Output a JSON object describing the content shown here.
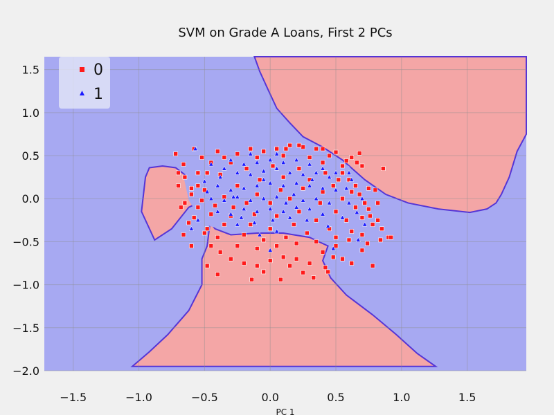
{
  "chart_data": {
    "type": "scatter",
    "title": "SVM on Grade A Loans, First 2 PCs",
    "xlabel": "PC 1",
    "ylabel": "",
    "xlim": [
      -1.72,
      1.95
    ],
    "ylim": [
      -2.0,
      1.65
    ],
    "xticks": [
      -1.5,
      -1.0,
      -0.5,
      0.0,
      0.5,
      1.0,
      1.5
    ],
    "xtick_labels": [
      "−1.5",
      "−1.0",
      "−0.5",
      "0.0",
      "0.5",
      "1.0",
      "1.5"
    ],
    "yticks": [
      1.5,
      1.0,
      0.5,
      0.0,
      -0.5,
      -1.0,
      -1.5,
      -2.0
    ],
    "ytick_labels": [
      "1.5",
      "1.0",
      "0.5",
      "0.0",
      "−0.5",
      "−1.0",
      "−1.5",
      "−2.0"
    ],
    "grid": true,
    "legend_position": "top-left",
    "colors": {
      "class0_region": "#f4a6a6",
      "class1_region": "#a7a9f2",
      "boundary": "#5535d6",
      "class0_marker": "#ff1a1a",
      "class1_marker": "#1a1aff",
      "grid": "#8e8e8e"
    },
    "decision_regions": [
      {
        "class": "0",
        "polygon": [
          [
            -0.92,
            0.36
          ],
          [
            -0.82,
            0.38
          ],
          [
            -0.72,
            0.36
          ],
          [
            -0.6,
            0.22
          ],
          [
            -0.52,
            0.05
          ],
          [
            -0.46,
            -0.3
          ],
          [
            -0.48,
            -0.55
          ],
          [
            -0.52,
            -0.7
          ],
          [
            -0.52,
            -1.0
          ],
          [
            -0.62,
            -1.3
          ],
          [
            -0.78,
            -1.58
          ],
          [
            -0.92,
            -1.78
          ],
          [
            -1.05,
            -1.95
          ],
          [
            1.26,
            -1.95
          ],
          [
            1.12,
            -1.8
          ],
          [
            0.96,
            -1.58
          ],
          [
            0.78,
            -1.35
          ],
          [
            0.58,
            -1.12
          ],
          [
            0.46,
            -0.92
          ],
          [
            0.4,
            -0.72
          ],
          [
            0.44,
            -0.55
          ],
          [
            0.3,
            -0.45
          ],
          [
            0.1,
            -0.4
          ],
          [
            -0.1,
            -0.4
          ],
          [
            -0.3,
            -0.42
          ],
          [
            -0.42,
            -0.35
          ],
          [
            -0.5,
            -0.2
          ],
          [
            -0.55,
            -0.05
          ],
          [
            -0.62,
            -0.1
          ],
          [
            -0.75,
            -0.35
          ],
          [
            -0.88,
            -0.48
          ],
          [
            -0.98,
            -0.15
          ],
          [
            -0.95,
            0.25
          ]
        ]
      },
      {
        "class": "0",
        "polygon": [
          [
            -0.12,
            1.65
          ],
          [
            1.95,
            1.65
          ],
          [
            1.95,
            0.75
          ],
          [
            1.88,
            0.55
          ],
          [
            1.82,
            0.25
          ],
          [
            1.76,
            0.05
          ],
          [
            1.72,
            -0.05
          ],
          [
            1.65,
            -0.12
          ],
          [
            1.52,
            -0.16
          ],
          [
            1.28,
            -0.12
          ],
          [
            1.05,
            -0.05
          ],
          [
            0.88,
            0.05
          ],
          [
            0.72,
            0.22
          ],
          [
            0.55,
            0.45
          ],
          [
            0.4,
            0.6
          ],
          [
            0.25,
            0.72
          ],
          [
            0.15,
            0.88
          ],
          [
            0.05,
            1.05
          ],
          [
            -0.02,
            1.28
          ],
          [
            -0.08,
            1.48
          ]
        ]
      }
    ],
    "class1_island": [
      [
        -0.66,
        0.26
      ],
      [
        -0.48,
        0.52
      ],
      [
        -0.1,
        0.6
      ],
      [
        0.32,
        0.56
      ],
      [
        0.6,
        0.38
      ],
      [
        0.74,
        0.05
      ],
      [
        0.62,
        -0.36
      ],
      [
        0.32,
        -0.44
      ],
      [
        0.0,
        -0.36
      ],
      [
        -0.28,
        -0.4
      ],
      [
        -0.5,
        -0.3
      ],
      [
        -0.62,
        -0.02
      ]
    ],
    "legend": [
      {
        "label": "0",
        "marker": "square"
      },
      {
        "label": "1",
        "marker": "triangle"
      }
    ],
    "series": [
      {
        "name": "0",
        "marker": "square",
        "points": [
          [
            -0.72,
            0.52
          ],
          [
            -0.58,
            0.58
          ],
          [
            -0.7,
            0.15
          ],
          [
            -0.65,
            0.25
          ],
          [
            -0.6,
            0.05
          ],
          [
            -0.55,
            -0.1
          ],
          [
            -0.62,
            -0.28
          ],
          [
            -0.5,
            -0.4
          ],
          [
            -0.45,
            -0.55
          ],
          [
            -0.38,
            -0.62
          ],
          [
            -0.3,
            -0.7
          ],
          [
            -0.2,
            -0.75
          ],
          [
            -0.1,
            -0.78
          ],
          [
            0.0,
            -0.72
          ],
          [
            0.1,
            -0.68
          ],
          [
            0.2,
            -0.7
          ],
          [
            0.3,
            -0.75
          ],
          [
            0.4,
            -0.62
          ],
          [
            0.5,
            -0.55
          ],
          [
            0.6,
            -0.48
          ],
          [
            0.7,
            -0.42
          ],
          [
            0.78,
            -0.3
          ],
          [
            0.75,
            -0.12
          ],
          [
            0.68,
            0.05
          ],
          [
            0.6,
            0.22
          ],
          [
            0.55,
            0.38
          ],
          [
            0.45,
            0.5
          ],
          [
            0.35,
            0.58
          ],
          [
            0.25,
            0.6
          ],
          [
            0.15,
            0.62
          ],
          [
            0.05,
            0.58
          ],
          [
            -0.05,
            0.55
          ],
          [
            -0.15,
            0.58
          ],
          [
            -0.25,
            0.52
          ],
          [
            -0.35,
            0.48
          ],
          [
            -0.45,
            0.42
          ],
          [
            -0.55,
            0.3
          ],
          [
            -0.6,
            0.12
          ],
          [
            -0.65,
            -0.05
          ],
          [
            -0.58,
            -0.22
          ],
          [
            -0.48,
            -0.35
          ],
          [
            -0.4,
            -0.45
          ],
          [
            -0.25,
            -0.55
          ],
          [
            -0.1,
            -0.58
          ],
          [
            0.05,
            -0.55
          ],
          [
            0.2,
            -0.52
          ],
          [
            0.35,
            -0.5
          ],
          [
            0.5,
            -0.45
          ],
          [
            0.62,
            -0.38
          ],
          [
            0.7,
            -0.22
          ],
          [
            0.72,
            -0.05
          ],
          [
            0.65,
            0.15
          ],
          [
            0.55,
            0.3
          ],
          [
            0.4,
            0.42
          ],
          [
            0.3,
            0.48
          ],
          [
            0.1,
            0.5
          ],
          [
            -0.1,
            0.48
          ],
          [
            -0.3,
            0.42
          ],
          [
            -0.48,
            0.3
          ],
          [
            -0.55,
            0.15
          ],
          [
            -0.52,
            -0.02
          ],
          [
            -0.45,
            -0.18
          ],
          [
            -0.35,
            -0.3
          ],
          [
            -0.2,
            -0.42
          ],
          [
            -0.05,
            -0.48
          ],
          [
            0.12,
            -0.45
          ],
          [
            0.28,
            -0.4
          ],
          [
            0.45,
            -0.35
          ],
          [
            0.58,
            -0.25
          ],
          [
            0.65,
            -0.1
          ],
          [
            0.62,
            0.08
          ],
          [
            0.52,
            0.22
          ],
          [
            0.42,
            0.3
          ],
          [
            0.22,
            0.35
          ],
          [
            0.02,
            0.38
          ],
          [
            -0.18,
            0.35
          ],
          [
            -0.38,
            0.28
          ],
          [
            -0.5,
            0.1
          ],
          [
            -0.42,
            -0.08
          ],
          [
            -0.3,
            -0.2
          ],
          [
            -0.15,
            -0.3
          ],
          [
            0.0,
            -0.35
          ],
          [
            0.18,
            -0.3
          ],
          [
            0.35,
            -0.25
          ],
          [
            0.5,
            -0.15
          ],
          [
            0.55,
            0.0
          ],
          [
            0.48,
            0.15
          ],
          [
            0.3,
            0.22
          ],
          [
            0.1,
            0.25
          ],
          [
            -0.08,
            0.22
          ],
          [
            -0.25,
            0.15
          ],
          [
            -0.35,
            0.02
          ],
          [
            -0.28,
            -0.1
          ],
          [
            -0.12,
            -0.18
          ],
          [
            0.05,
            -0.2
          ],
          [
            0.22,
            -0.15
          ],
          [
            0.38,
            -0.05
          ],
          [
            0.4,
            0.08
          ],
          [
            0.25,
            0.12
          ],
          [
            0.08,
            0.1
          ],
          [
            -0.1,
            0.05
          ],
          [
            -0.18,
            -0.05
          ],
          [
            0.0,
            -0.05
          ],
          [
            0.15,
            0.0
          ],
          [
            -0.4,
            -0.88
          ],
          [
            -0.14,
            -0.94
          ],
          [
            0.08,
            -0.94
          ],
          [
            0.44,
            -0.85
          ],
          [
            0.62,
            -0.75
          ],
          [
            0.78,
            -0.78
          ],
          [
            0.84,
            -0.48
          ],
          [
            0.9,
            -0.45
          ],
          [
            0.92,
            -0.45
          ],
          [
            0.85,
            -0.35
          ],
          [
            0.82,
            -0.05
          ],
          [
            0.8,
            0.1
          ],
          [
            0.76,
            -0.2
          ],
          [
            0.82,
            -0.25
          ],
          [
            0.66,
            0.42
          ],
          [
            0.7,
            0.38
          ],
          [
            0.86,
            0.35
          ],
          [
            0.68,
            0.53
          ],
          [
            0.75,
            0.12
          ],
          [
            0.15,
            -0.78
          ],
          [
            0.25,
            -0.86
          ],
          [
            -0.48,
            -0.78
          ],
          [
            -0.6,
            -0.55
          ],
          [
            -0.66,
            -0.42
          ],
          [
            0.55,
            -0.7
          ],
          [
            0.42,
            -0.8
          ],
          [
            -0.05,
            -0.85
          ],
          [
            0.33,
            -0.92
          ],
          [
            0.48,
            -0.68
          ],
          [
            0.7,
            -0.6
          ],
          [
            0.74,
            -0.52
          ],
          [
            -0.7,
            0.3
          ],
          [
            -0.68,
            -0.1
          ],
          [
            -0.66,
            0.4
          ],
          [
            -0.52,
            0.48
          ],
          [
            -0.4,
            0.55
          ],
          [
            0.12,
            0.58
          ],
          [
            0.22,
            0.62
          ],
          [
            0.4,
            0.58
          ],
          [
            0.5,
            0.54
          ],
          [
            0.58,
            0.44
          ],
          [
            0.62,
            0.48
          ]
        ]
      },
      {
        "name": "1",
        "marker": "triangle",
        "points": [
          [
            -0.57,
            0.58
          ],
          [
            -0.45,
            0.4
          ],
          [
            -0.35,
            0.35
          ],
          [
            -0.25,
            0.3
          ],
          [
            -0.15,
            0.28
          ],
          [
            -0.05,
            0.32
          ],
          [
            0.05,
            0.35
          ],
          [
            0.15,
            0.3
          ],
          [
            0.25,
            0.28
          ],
          [
            0.35,
            0.3
          ],
          [
            0.45,
            0.25
          ],
          [
            -0.5,
            0.2
          ],
          [
            -0.4,
            0.15
          ],
          [
            -0.3,
            0.1
          ],
          [
            -0.2,
            0.12
          ],
          [
            -0.1,
            0.15
          ],
          [
            0.0,
            0.18
          ],
          [
            0.1,
            0.15
          ],
          [
            0.2,
            0.18
          ],
          [
            0.3,
            0.15
          ],
          [
            0.4,
            0.12
          ],
          [
            0.5,
            0.1
          ],
          [
            -0.45,
            0.0
          ],
          [
            -0.35,
            -0.02
          ],
          [
            -0.25,
            0.02
          ],
          [
            -0.15,
            -0.02
          ],
          [
            -0.05,
            0.0
          ],
          [
            0.05,
            0.02
          ],
          [
            0.12,
            -0.05
          ],
          [
            0.25,
            -0.02
          ],
          [
            0.35,
            0.0
          ],
          [
            0.45,
            -0.05
          ],
          [
            -0.4,
            -0.15
          ],
          [
            -0.3,
            -0.18
          ],
          [
            -0.2,
            -0.12
          ],
          [
            -0.1,
            -0.15
          ],
          [
            0.0,
            -0.12
          ],
          [
            0.1,
            -0.15
          ],
          [
            0.2,
            -0.1
          ],
          [
            0.3,
            -0.12
          ],
          [
            0.4,
            -0.18
          ],
          [
            -0.25,
            -0.3
          ],
          [
            -0.12,
            -0.28
          ],
          [
            0.02,
            -0.25
          ],
          [
            0.15,
            -0.22
          ],
          [
            0.28,
            -0.25
          ],
          [
            -0.3,
            0.45
          ],
          [
            -0.2,
            0.4
          ],
          [
            -0.1,
            0.42
          ],
          [
            0.0,
            0.45
          ],
          [
            0.1,
            0.42
          ],
          [
            0.2,
            0.45
          ],
          [
            0.3,
            0.4
          ],
          [
            -0.38,
            0.25
          ],
          [
            0.4,
            0.35
          ],
          [
            0.5,
            0.3
          ],
          [
            -0.55,
            -0.25
          ],
          [
            -0.6,
            -0.35
          ],
          [
            0.58,
            0.12
          ],
          [
            0.6,
            -0.05
          ],
          [
            0.55,
            -0.22
          ],
          [
            0.7,
            0.0
          ],
          [
            0.66,
            -0.16
          ],
          [
            0.6,
            0.3
          ],
          [
            0.72,
            -0.3
          ],
          [
            -0.15,
            0.52
          ],
          [
            0.05,
            0.52
          ],
          [
            -0.28,
            0.02
          ],
          [
            0.05,
            -0.38
          ],
          [
            -0.08,
            -0.42
          ],
          [
            0.18,
            0.05
          ],
          [
            -0.05,
            0.22
          ],
          [
            0.32,
            0.22
          ],
          [
            -0.22,
            -0.22
          ],
          [
            0.44,
            -0.32
          ],
          [
            0.62,
            0.22
          ],
          [
            -0.48,
            0.08
          ],
          [
            0.0,
            -0.6
          ],
          [
            0.48,
            -0.58
          ],
          [
            0.67,
            -0.48
          ]
        ]
      }
    ]
  }
}
